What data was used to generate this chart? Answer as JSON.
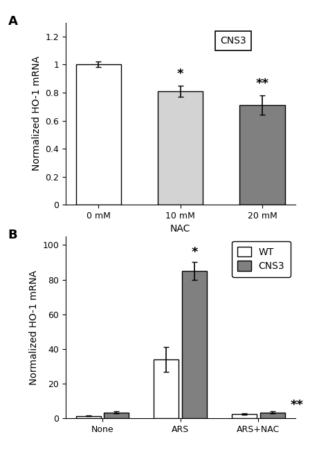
{
  "panel_A": {
    "categories": [
      "0 mM",
      "10 mM",
      "20 mM"
    ],
    "values": [
      1.0,
      0.81,
      0.71
    ],
    "errors": [
      0.02,
      0.04,
      0.07
    ],
    "bar_colors": [
      "#ffffff",
      "#d3d3d3",
      "#808080"
    ],
    "bar_edgecolor": "#000000",
    "ylabel": "Normalized HO-1 mRNA",
    "xlabel": "NAC",
    "ylim": [
      0,
      1.3
    ],
    "yticks": [
      0,
      0.2,
      0.4,
      0.6,
      0.8,
      1.0,
      1.2
    ],
    "significance": [
      "",
      "*",
      "**"
    ],
    "legend_label": "CNS3",
    "panel_label": "A"
  },
  "panel_B": {
    "group_labels": [
      "None",
      "ARS",
      "ARS+NAC"
    ],
    "wt_values": [
      1.5,
      34.0,
      2.5
    ],
    "cns3_values": [
      3.5,
      85.0,
      3.5
    ],
    "wt_errors": [
      0.3,
      7.0,
      0.4
    ],
    "cns3_errors": [
      0.5,
      5.0,
      0.5
    ],
    "wt_color": "#ffffff",
    "cns3_color": "#808080",
    "bar_edgecolor": "#000000",
    "ylabel": "Normalized HO-1 mRNA",
    "ylim": [
      0,
      105
    ],
    "yticks": [
      0,
      20,
      40,
      60,
      80,
      100
    ],
    "significance_ars": "*",
    "significance_arsnac": "**",
    "panel_label": "B",
    "legend_wt": "WT",
    "legend_cns3": "CNS3"
  },
  "font_size": 10,
  "label_font_size": 10,
  "tick_font_size": 9,
  "sig_font_size": 13
}
